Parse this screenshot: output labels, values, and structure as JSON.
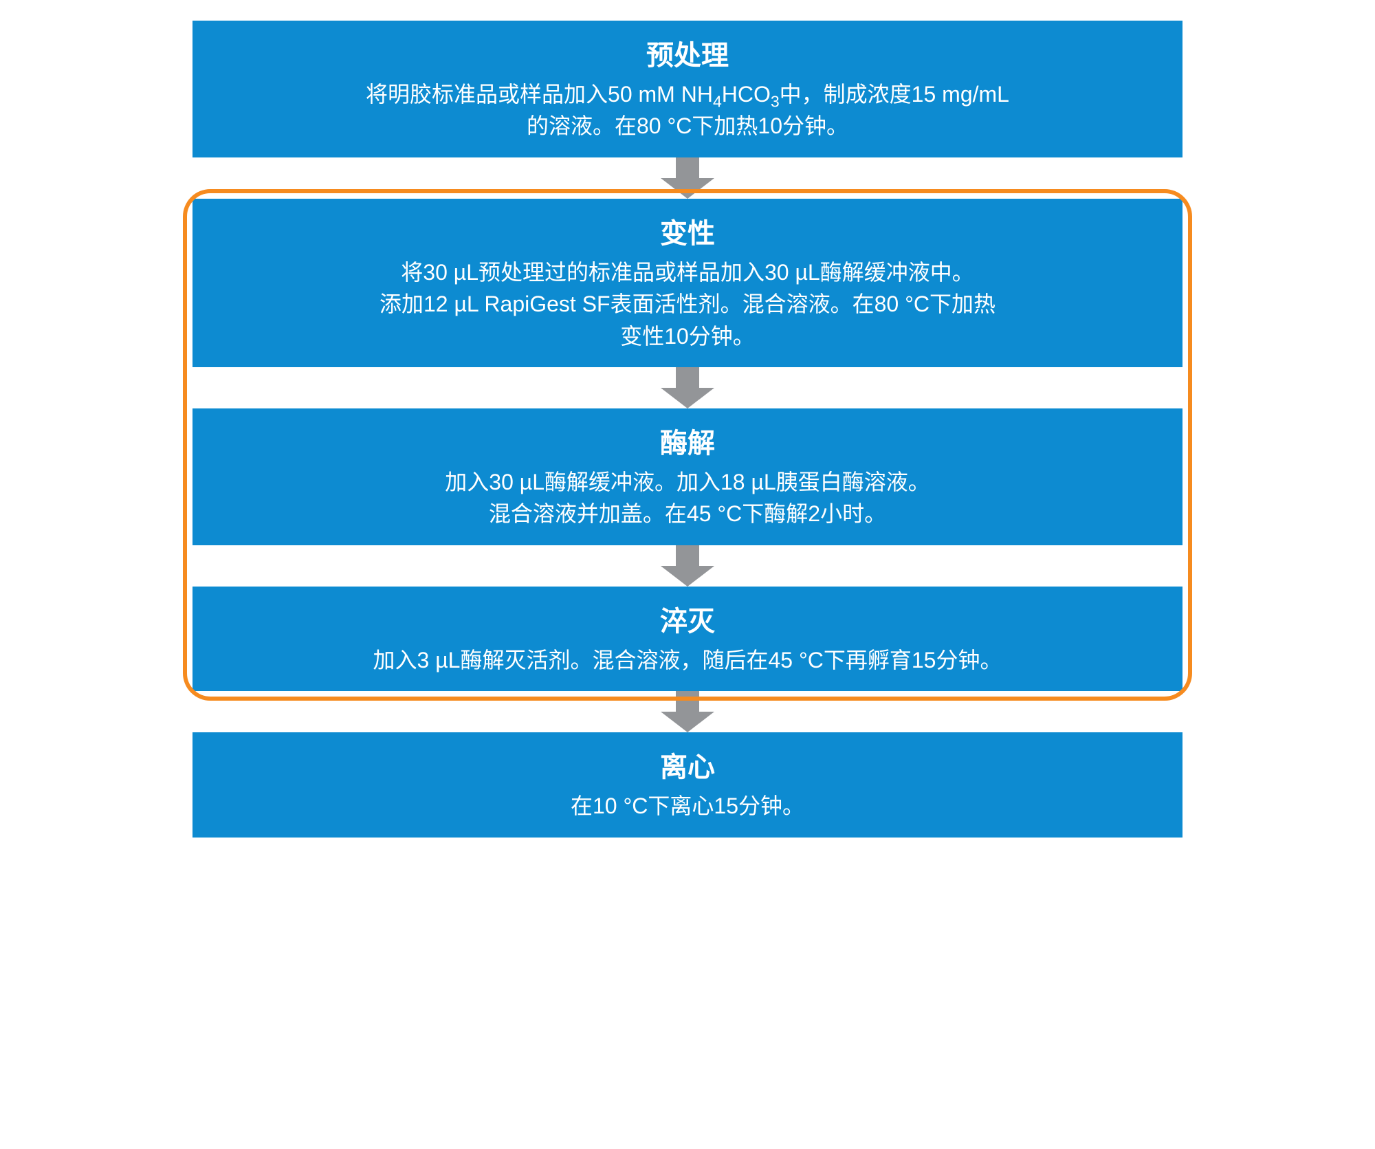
{
  "flowchart": {
    "type": "flowchart",
    "background_color": "#ffffff",
    "step_bg_color": "#0d8bd1",
    "step_text_color": "#ffffff",
    "arrow_color": "#939598",
    "arrow_width": 78,
    "arrow_height": 60,
    "highlight_border_color": "#f68b1f",
    "highlight_border_width": 6,
    "highlight_border_radius": 40,
    "title_fontsize": 40,
    "body_fontsize": 32,
    "steps": [
      {
        "id": "pretreatment",
        "title": "预处理",
        "body_html": "将明胶标准品或样品加入50 mM NH<sub>4</sub>HCO<sub>3</sub>中，制成浓度15 mg/mL<br>的溶液。在80 °C下加热10分钟。"
      },
      {
        "id": "denaturation",
        "title": "变性",
        "body_html": "将30 µL预处理过的标准品或样品加入30 µL酶解缓冲液中。<br>添加12 µL RapiGest SF表面活性剂。混合溶液。在80 °C下加热<br>变性10分钟。"
      },
      {
        "id": "digestion",
        "title": "酶解",
        "body_html": "加入30 µL酶解缓冲液。加入18 µL胰蛋白酶溶液。<br>混合溶液并加盖。在45 °C下酶解2小时。"
      },
      {
        "id": "quench",
        "title": "淬灭",
        "body_html": "加入3 µL酶解灭活剂。混合溶液，随后在45 °C下再孵育15分钟。"
      },
      {
        "id": "centrifuge",
        "title": "离心",
        "body_html": "在10 °C下离心15分钟。"
      }
    ],
    "highlight_group": {
      "start_step_index": 1,
      "end_step_index": 3
    }
  }
}
